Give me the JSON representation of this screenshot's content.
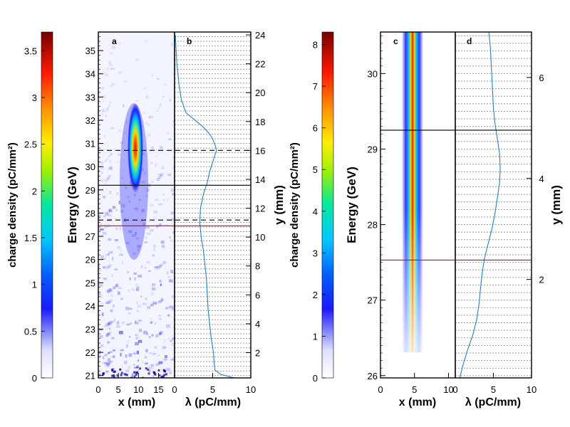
{
  "chart_data": [
    {
      "type": "heatmap",
      "panel": "a",
      "xlabel": "x (mm)",
      "ylabel": "Energy (GeV)",
      "xlim": [
        0,
        19
      ],
      "ylim": [
        20.9,
        35.8
      ],
      "x_ticks": [
        "0",
        "5",
        "10",
        "15"
      ],
      "y_ticks": [
        "21",
        "22",
        "23",
        "24",
        "25",
        "26",
        "27",
        "28",
        "29",
        "30",
        "31",
        "32",
        "33",
        "34",
        "35"
      ],
      "colorbar": {
        "label": "charge density (pC/mm²)",
        "range": [
          0,
          3.7
        ],
        "ticks": [
          "0",
          "0.5",
          "1",
          "1.5",
          "2",
          "2.5",
          "3",
          "3.5"
        ]
      },
      "peak_x_mm": 9.3,
      "peak_energy_GeV": 29.2,
      "lines": [
        {
          "energy": 30.7,
          "style": "dashed",
          "color": "#000000"
        },
        {
          "energy": 29.2,
          "style": "solid",
          "color": "#000000"
        },
        {
          "energy": 27.7,
          "style": "dashed",
          "color": "#000000"
        },
        {
          "energy": 27.45,
          "style": "solid",
          "color": "#e00000"
        }
      ]
    },
    {
      "type": "line",
      "panel": "b",
      "xlabel": "λ (pC/mm)",
      "ylabel": "y (mm)",
      "xlim": [
        0,
        10
      ],
      "ylim": [
        0.25,
        24.2
      ],
      "x_ticks": [
        "0",
        "5",
        "10"
      ],
      "y_ticks": [
        "2",
        "4",
        "6",
        "8",
        "10",
        "12",
        "14",
        "16",
        "18",
        "20",
        "22",
        "24"
      ],
      "series": [
        {
          "name": "λ",
          "color": "#2a7fb8",
          "y": [
            0.25,
            0.5,
            0.8,
            1.2,
            2,
            3,
            4,
            5,
            6,
            7,
            8,
            9,
            10,
            11,
            12,
            13,
            13.8,
            14.5,
            15.2,
            16.0,
            16.4,
            16.8,
            17.2,
            17.6,
            18.0,
            18.6,
            19.5,
            20.5,
            22,
            24
          ],
          "values": [
            7.8,
            6.0,
            5.3,
            5.2,
            5.1,
            4.8,
            4.6,
            4.4,
            4.3,
            4.2,
            4.0,
            3.8,
            3.5,
            3.3,
            3.4,
            3.8,
            4.3,
            4.6,
            5.0,
            5.5,
            5.3,
            5.0,
            4.5,
            3.8,
            2.9,
            1.5,
            0.9,
            0.6,
            0.3,
            0.1
          ]
        }
      ]
    },
    {
      "type": "heatmap",
      "panel": "c",
      "xlabel": "x (mm)",
      "ylabel": "Energy (GeV)",
      "xlim": [
        0,
        11
      ],
      "ylim": [
        25.97,
        30.55
      ],
      "x_ticks": [
        "0",
        "5",
        "10"
      ],
      "y_ticks": [
        "26",
        "27",
        "28",
        "29",
        "30"
      ],
      "colorbar": {
        "label": "charge density (pC/mm²)",
        "range": [
          0,
          8.3
        ],
        "ticks": [
          "0",
          "1",
          "2",
          "3",
          "4",
          "5",
          "6",
          "7",
          "8"
        ]
      },
      "peak_x_mm": 5.1,
      "peak_energy_GeV": 29.0,
      "lines": [
        {
          "energy": 29.25,
          "style": "solid",
          "color": "#000000"
        },
        {
          "energy": 27.53,
          "style": "solid",
          "color": "#e00000"
        }
      ]
    },
    {
      "type": "line",
      "panel": "d",
      "xlabel": "λ (pC/mm)",
      "ylabel": "y (mm)",
      "xlim": [
        0,
        10
      ],
      "ylim": [
        0.05,
        6.9
      ],
      "x_ticks": [
        "0",
        "5",
        "10"
      ],
      "y_ticks": [
        "2",
        "4",
        "6"
      ],
      "series": [
        {
          "name": "λ",
          "color": "#2a7fb8",
          "y": [
            0.05,
            0.3,
            0.6,
            0.9,
            1.2,
            1.5,
            1.8,
            2.1,
            2.4,
            2.7,
            3.0,
            3.3,
            3.6,
            3.9,
            4.2,
            4.5,
            4.8,
            5.1,
            5.4,
            5.7,
            6.0,
            6.3,
            6.6,
            6.9
          ],
          "values": [
            0.6,
            1.0,
            1.6,
            2.3,
            2.8,
            3.1,
            3.3,
            3.5,
            3.8,
            4.3,
            4.8,
            5.2,
            5.5,
            5.8,
            5.9,
            5.8,
            5.5,
            5.2,
            5.0,
            4.9,
            4.8,
            4.7,
            4.6,
            4.4
          ]
        }
      ]
    }
  ]
}
